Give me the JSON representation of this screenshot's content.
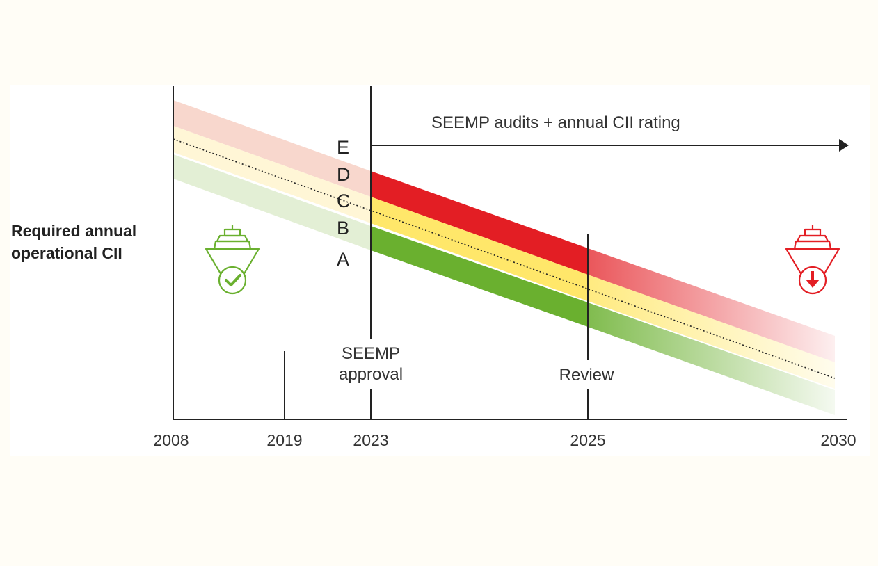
{
  "diagram": {
    "ylabel_line1": "Required annual",
    "ylabel_line2": "operational CII",
    "arrow_label": "SEEMP audits + annual CII rating",
    "approval_line1": "SEEMP",
    "approval_line2": "approval",
    "review_label": "Review",
    "ratings": [
      "E",
      "D",
      "C",
      "B",
      "A"
    ],
    "years": [
      "2008",
      "2019",
      "2023",
      "2025",
      "2030"
    ],
    "colors": {
      "E": "#f2c2b4",
      "D": "#e31e24",
      "C": "#ffe76a",
      "B": "#ffe76a",
      "A": "#6ab02f",
      "compliant_icon": "#6ab02f",
      "noncompliant_icon": "#e31e24",
      "axis": "#222222"
    },
    "icons": [
      "ship-check-icon",
      "ship-down-arrow-icon"
    ]
  }
}
